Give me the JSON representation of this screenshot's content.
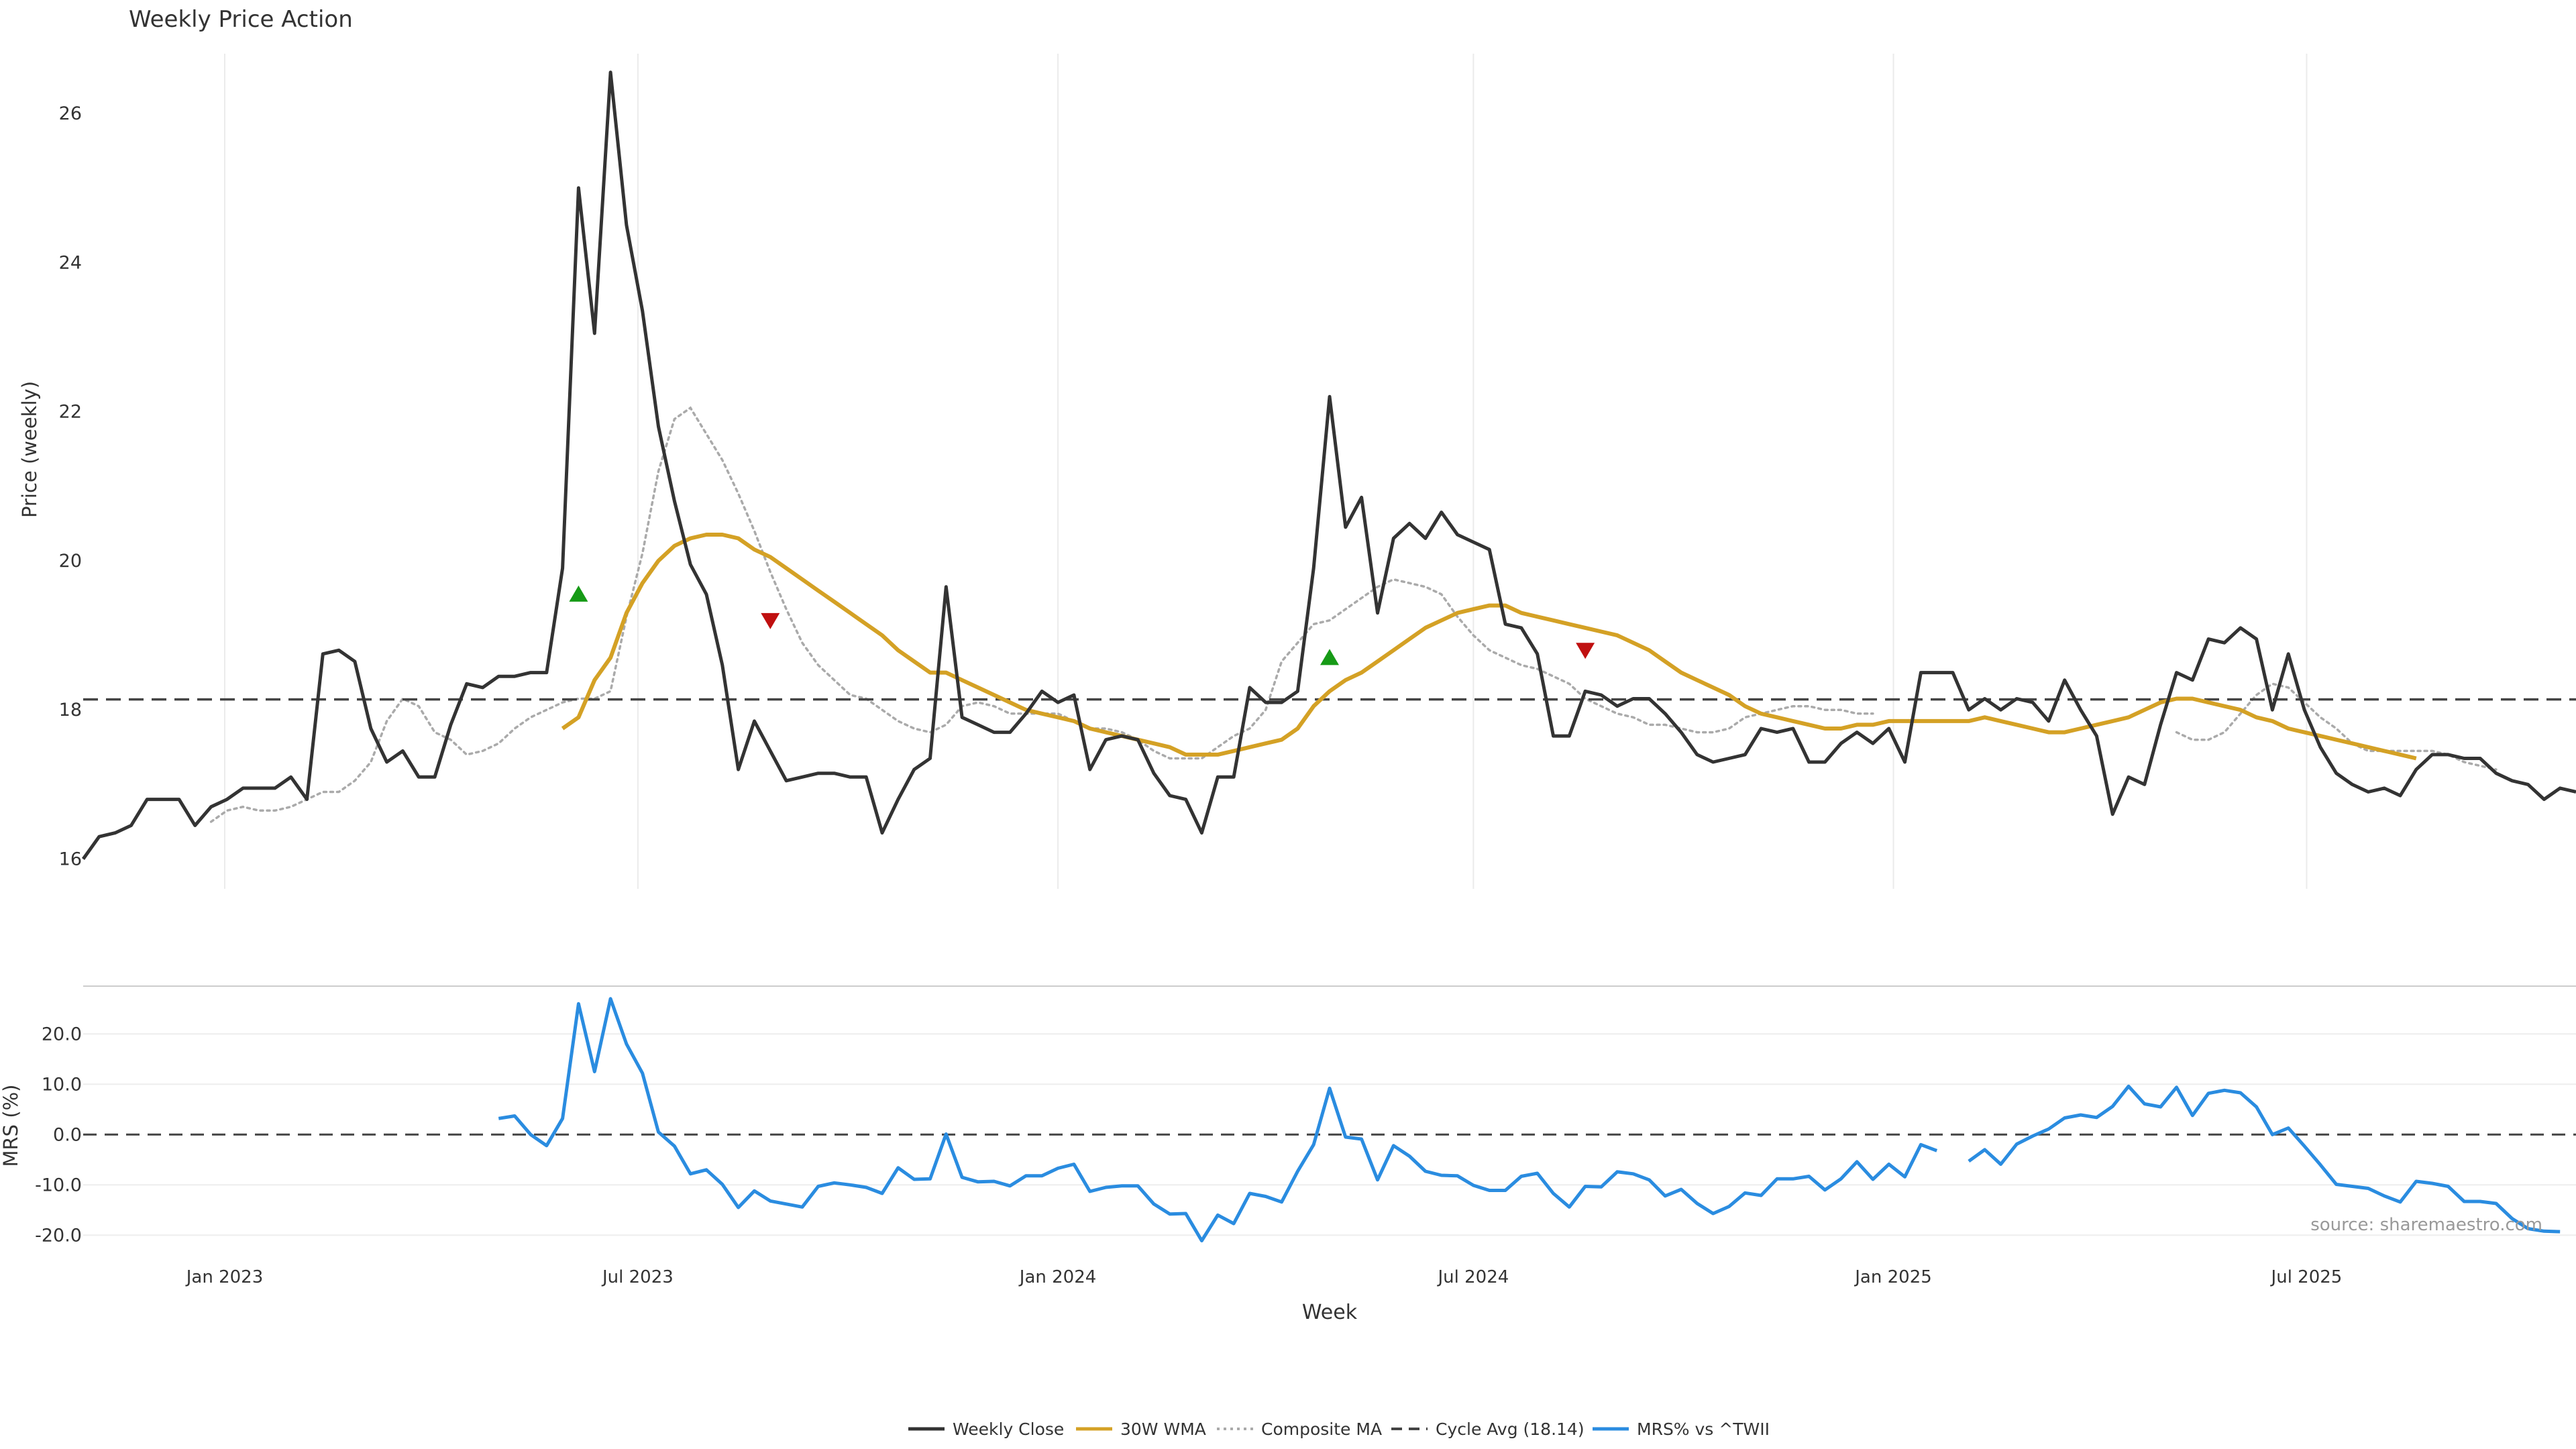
{
  "chart_data": {
    "type": "line",
    "title": "Weekly Price Action",
    "source_text": "source: sharemaestro.com",
    "x_label": "Week",
    "x_range": [
      "2022-10-31",
      "2025-10-27"
    ],
    "x_ticks": [
      {
        "date": "2023-01-01",
        "label": "Jan 2023"
      },
      {
        "date": "2023-07-01",
        "label": "Jul 2023"
      },
      {
        "date": "2024-01-01",
        "label": "Jan 2024"
      },
      {
        "date": "2024-07-01",
        "label": "Jul 2024"
      },
      {
        "date": "2025-01-01",
        "label": "Jan 2025"
      },
      {
        "date": "2025-07-01",
        "label": "Jul 2025"
      }
    ],
    "grid": true,
    "legend_placement": "bottom-center",
    "colors": {
      "close": "#333333",
      "wma": "#d4a125",
      "composite": "#aaaaaa",
      "cycle_avg": "#444444",
      "mrs": "#2a8ce0",
      "buy_marker": "#169a16",
      "sell_marker": "#c01010"
    },
    "price_panel": {
      "ylabel": "Price (weekly)",
      "ylim": [
        15.6,
        26.8
      ],
      "y_ticks": [
        "16",
        "18",
        "20",
        "22",
        "24",
        "26"
      ],
      "cycle_avg": 18.14,
      "series": {
        "weekly_close": [
          16.0,
          16.3,
          16.35,
          16.45,
          16.8,
          16.8,
          16.8,
          16.45,
          16.7,
          16.8,
          16.95,
          16.95,
          16.95,
          17.1,
          16.8,
          18.75,
          18.8,
          18.65,
          17.75,
          17.3,
          17.45,
          17.1,
          17.1,
          17.8,
          18.35,
          18.3,
          18.45,
          18.45,
          18.5,
          18.5,
          19.9,
          25.0,
          23.05,
          26.55,
          24.5,
          23.35,
          21.8,
          20.8,
          19.95,
          19.55,
          18.6,
          17.2,
          17.85,
          17.45,
          17.05,
          17.1,
          17.15,
          17.15,
          17.1,
          17.1,
          16.35,
          16.8,
          17.2,
          17.35,
          19.65,
          17.9,
          17.8,
          17.7,
          17.7,
          17.95,
          18.25,
          18.1,
          18.2,
          17.2,
          17.6,
          17.65,
          17.6,
          17.15,
          16.85,
          16.8,
          16.35,
          17.1,
          17.1,
          18.3,
          18.1,
          18.1,
          18.25,
          19.9,
          22.2,
          20.45,
          20.85,
          19.3,
          20.3,
          20.5,
          20.3,
          20.65,
          20.35,
          20.25,
          20.15,
          19.15,
          19.1,
          18.75,
          17.65,
          17.65,
          18.25,
          18.2,
          18.05,
          18.15,
          18.15,
          17.95,
          17.7,
          17.4,
          17.3,
          17.35,
          17.4,
          17.75,
          17.7,
          17.75,
          17.3,
          17.3,
          17.55,
          17.7,
          17.55,
          17.75,
          17.3,
          18.5,
          18.5,
          18.5,
          18.0,
          18.15,
          18.0,
          18.15,
          18.1,
          17.85,
          18.4,
          18.0,
          17.65,
          16.6,
          17.1,
          17.0,
          17.8,
          18.5,
          18.4,
          18.95,
          18.9,
          19.1,
          18.95,
          18.0,
          18.75,
          18.0,
          17.5,
          17.15,
          17.0,
          16.9,
          16.95,
          16.85,
          17.2,
          17.4,
          17.4,
          17.35,
          17.35,
          17.15,
          17.05,
          17.0,
          16.8,
          16.95,
          16.9
        ],
        "wma_30w": [
          17.75,
          17.9,
          18.4,
          18.7,
          19.3,
          19.7,
          20.0,
          20.2,
          20.3,
          20.35,
          20.35,
          20.3,
          20.15,
          20.05,
          19.9,
          19.75,
          19.6,
          19.45,
          19.3,
          19.15,
          19.0,
          18.8,
          18.65,
          18.5,
          18.5,
          18.4,
          18.3,
          18.2,
          18.1,
          18.0,
          17.95,
          17.9,
          17.85,
          17.75,
          17.7,
          17.65,
          17.6,
          17.55,
          17.5,
          17.4,
          17.4,
          17.4,
          17.45,
          17.5,
          17.55,
          17.6,
          17.75,
          18.05,
          18.25,
          18.4,
          18.5,
          18.65,
          18.8,
          18.95,
          19.1,
          19.2,
          19.3,
          19.35,
          19.4,
          19.4,
          19.3,
          19.25,
          19.2,
          19.15,
          19.1,
          19.05,
          19.0,
          18.9,
          18.8,
          18.65,
          18.5,
          18.4,
          18.3,
          18.2,
          18.05,
          17.95,
          17.9,
          17.85,
          17.8,
          17.75,
          17.75,
          17.8,
          17.8,
          17.85,
          17.85,
          17.85,
          17.85,
          17.85,
          17.85,
          17.9,
          17.85,
          17.8,
          17.75,
          17.7,
          17.7,
          17.75,
          17.8,
          17.85,
          17.9,
          18.0,
          18.1,
          18.15,
          18.15,
          18.1,
          18.05,
          18.0,
          17.9,
          17.85,
          17.75,
          17.7,
          17.65,
          17.6,
          17.55,
          17.5,
          17.45,
          17.4,
          17.35
        ]
      },
      "composite_segments": [
        {
          "start_index": 8,
          "values": [
            16.5,
            16.65,
            16.7,
            16.65,
            16.65,
            16.7,
            16.8,
            16.9,
            16.9,
            17.05,
            17.3,
            17.85,
            18.15,
            18.05,
            17.7,
            17.6,
            17.4,
            17.45,
            17.55,
            17.75,
            17.9,
            18.0,
            18.1,
            18.15,
            18.15,
            18.25,
            19.25,
            20.1,
            21.2,
            21.9,
            22.05,
            21.7,
            21.35,
            20.9,
            20.4,
            19.85,
            19.35,
            18.9,
            18.6,
            18.4,
            18.2,
            18.15,
            18.0,
            17.85,
            17.75,
            17.7,
            17.8,
            18.05,
            18.1,
            18.05,
            17.95,
            17.95,
            17.95,
            17.95,
            17.85,
            17.75,
            17.75,
            17.7,
            17.6,
            17.45,
            17.35,
            17.35,
            17.35,
            17.5,
            17.65,
            17.75,
            18.0,
            18.65,
            18.9,
            19.15,
            19.2,
            19.35,
            19.5,
            19.65,
            19.75,
            19.7,
            19.65,
            19.55,
            19.25,
            19.0,
            18.8,
            18.7,
            18.6,
            18.55,
            18.45,
            18.35,
            18.15,
            18.05,
            17.95,
            17.9,
            17.8,
            17.8,
            17.75,
            17.7,
            17.7,
            17.75,
            17.9,
            17.95,
            18.0,
            18.05,
            18.05,
            18.0,
            18.0,
            17.95,
            17.95
          ]
        },
        {
          "start_index": 131,
          "values": [
            17.7,
            17.6,
            17.6,
            17.7,
            17.95,
            18.2,
            18.35,
            18.3,
            18.1,
            17.9,
            17.75,
            17.55,
            17.45,
            17.45,
            17.45,
            17.45,
            17.45,
            17.4,
            17.3,
            17.25,
            17.2
          ]
        }
      ],
      "signals": [
        {
          "type": "buy",
          "index": 31,
          "price": 19.55
        },
        {
          "type": "sell",
          "index": 43,
          "price": 19.2
        },
        {
          "type": "buy",
          "index": 78,
          "price": 18.7
        },
        {
          "type": "sell",
          "index": 94,
          "price": 18.8
        }
      ]
    },
    "mrs_panel": {
      "ylabel": "MRS (%)",
      "ylim": [
        -22.5,
        29.5
      ],
      "y_ticks": [
        "20.0",
        "10.0",
        "0.0",
        "-10.0",
        "-20.0"
      ],
      "zero_line": 0,
      "segments": [
        {
          "start_index": 26,
          "values": [
            3.2,
            3.7,
            0.0,
            -2.2,
            3.2,
            26.0,
            12.5,
            27.0,
            18.0,
            12.2,
            0.5,
            -2.3,
            -7.8,
            -7.0,
            -9.9,
            -14.5,
            -11.2,
            -13.2,
            -13.8,
            -14.4,
            -10.3,
            -9.6,
            -10.0,
            -10.5,
            -11.7,
            -6.6,
            -8.9,
            -8.8,
            0.1,
            -8.5,
            -9.4,
            -9.3,
            -10.2,
            -8.2,
            -8.2,
            -6.7,
            -5.9,
            -11.3,
            -10.5,
            -10.2,
            -10.2,
            -13.8,
            -15.8,
            -15.7,
            -21.1,
            -16.0,
            -17.7,
            -11.7,
            -12.3,
            -13.4,
            -7.3,
            -2.0,
            9.2,
            -0.5,
            -0.9,
            -9.0,
            -2.2,
            -4.3,
            -7.3,
            -8.1,
            -8.2,
            -10.1,
            -11.1,
            -11.1,
            -8.3,
            -7.7,
            -11.7,
            -14.4,
            -10.3,
            -10.4,
            -7.4,
            -7.8,
            -9.0,
            -12.2,
            -10.9,
            -13.7,
            -15.7,
            -14.3,
            -11.6,
            -12.1,
            -8.8,
            -8.8,
            -8.3,
            -11.0,
            -8.8,
            -5.4,
            -8.9,
            -5.9,
            -8.4,
            -2.0,
            -3.2
          ]
        },
        {
          "start_index": 118,
          "values": [
            -5.3,
            -3.0,
            -5.9,
            -1.9,
            -0.3,
            1.1,
            3.3,
            3.9,
            3.4,
            5.6,
            9.6,
            6.1,
            5.5,
            9.4,
            3.8,
            8.2,
            8.8,
            8.3,
            5.5,
            0.0,
            1.3,
            -2.3,
            -6.0,
            -9.9,
            -10.3,
            -10.7,
            -12.2,
            -13.4,
            -9.3,
            -9.7,
            -10.3,
            -13.3,
            -13.3,
            -13.7,
            -16.7,
            -18.7,
            -19.2,
            -19.3
          ]
        }
      ]
    },
    "legend": [
      {
        "key": "close",
        "label": "Weekly Close",
        "style": "solid"
      },
      {
        "key": "wma",
        "label": "30W WMA",
        "style": "solid"
      },
      {
        "key": "composite",
        "label": "Composite MA",
        "style": "dotted"
      },
      {
        "key": "cycle_avg",
        "label": "Cycle Avg (18.14)",
        "style": "dashed"
      },
      {
        "key": "mrs",
        "label": "MRS% vs ^TWII",
        "style": "solid"
      }
    ]
  }
}
